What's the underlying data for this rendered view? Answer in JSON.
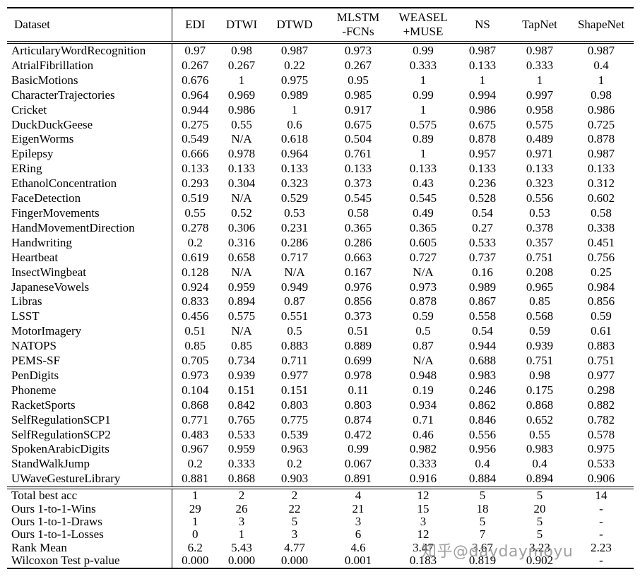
{
  "watermark": "知乎@daydaymoyu",
  "table": {
    "header": [
      {
        "name": "dataset",
        "lines": [
          "Dataset"
        ]
      },
      {
        "name": "edi",
        "lines": [
          "EDI"
        ]
      },
      {
        "name": "dtwi",
        "lines": [
          "DTWI"
        ]
      },
      {
        "name": "dtwd",
        "lines": [
          "DTWD"
        ]
      },
      {
        "name": "mlstm-fcns",
        "lines": [
          "MLSTM",
          "-FCNs"
        ]
      },
      {
        "name": "weasel-muse",
        "lines": [
          "WEASEL",
          "+MUSE"
        ]
      },
      {
        "name": "ns",
        "lines": [
          "NS"
        ]
      },
      {
        "name": "tapnet",
        "lines": [
          "TapNet"
        ]
      },
      {
        "name": "shapenet",
        "lines": [
          "ShapeNet"
        ]
      }
    ],
    "rows": [
      [
        "ArticularyWordRecognition",
        "0.97",
        "0.98",
        "0.987",
        "0.973",
        "0.99",
        "0.987",
        "0.987",
        "0.987"
      ],
      [
        "AtrialFibrillation",
        "0.267",
        "0.267",
        "0.22",
        "0.267",
        "0.333",
        "0.133",
        "0.333",
        "0.4"
      ],
      [
        "BasicMotions",
        "0.676",
        "1",
        "0.975",
        "0.95",
        "1",
        "1",
        "1",
        "1"
      ],
      [
        "CharacterTrajectories",
        "0.964",
        "0.969",
        "0.989",
        "0.985",
        "0.99",
        "0.994",
        "0.997",
        "0.98"
      ],
      [
        "Cricket",
        "0.944",
        "0.986",
        "1",
        "0.917",
        "1",
        "0.986",
        "0.958",
        "0.986"
      ],
      [
        "DuckDuckGeese",
        "0.275",
        "0.55",
        "0.6",
        "0.675",
        "0.575",
        "0.675",
        "0.575",
        "0.725"
      ],
      [
        "EigenWorms",
        "0.549",
        "N/A",
        "0.618",
        "0.504",
        "0.89",
        "0.878",
        "0.489",
        "0.878"
      ],
      [
        "Epilepsy",
        "0.666",
        "0.978",
        "0.964",
        "0.761",
        "1",
        "0.957",
        "0.971",
        "0.987"
      ],
      [
        "ERing",
        "0.133",
        "0.133",
        "0.133",
        "0.133",
        "0.133",
        "0.133",
        "0.133",
        "0.133"
      ],
      [
        "EthanolConcentration",
        "0.293",
        "0.304",
        "0.323",
        "0.373",
        "0.43",
        "0.236",
        "0.323",
        "0.312"
      ],
      [
        "FaceDetection",
        "0.519",
        "N/A",
        "0.529",
        "0.545",
        "0.545",
        "0.528",
        "0.556",
        "0.602"
      ],
      [
        "FingerMovements",
        "0.55",
        "0.52",
        "0.53",
        "0.58",
        "0.49",
        "0.54",
        "0.53",
        "0.58"
      ],
      [
        "HandMovementDirection",
        "0.278",
        "0.306",
        "0.231",
        "0.365",
        "0.365",
        "0.27",
        "0.378",
        "0.338"
      ],
      [
        "Handwriting",
        "0.2",
        "0.316",
        "0.286",
        "0.286",
        "0.605",
        "0.533",
        "0.357",
        "0.451"
      ],
      [
        "Heartbeat",
        "0.619",
        "0.658",
        "0.717",
        "0.663",
        "0.727",
        "0.737",
        "0.751",
        "0.756"
      ],
      [
        "InsectWingbeat",
        "0.128",
        "N/A",
        "N/A",
        "0.167",
        "N/A",
        "0.16",
        "0.208",
        "0.25"
      ],
      [
        "JapaneseVowels",
        "0.924",
        "0.959",
        "0.949",
        "0.976",
        "0.973",
        "0.989",
        "0.965",
        "0.984"
      ],
      [
        "Libras",
        "0.833",
        "0.894",
        "0.87",
        "0.856",
        "0.878",
        "0.867",
        "0.85",
        "0.856"
      ],
      [
        "LSST",
        "0.456",
        "0.575",
        "0.551",
        "0.373",
        "0.59",
        "0.558",
        "0.568",
        "0.59"
      ],
      [
        "MotorImagery",
        "0.51",
        "N/A",
        "0.5",
        "0.51",
        "0.5",
        "0.54",
        "0.59",
        "0.61"
      ],
      [
        "NATOPS",
        "0.85",
        "0.85",
        "0.883",
        "0.889",
        "0.87",
        "0.944",
        "0.939",
        "0.883"
      ],
      [
        "PEMS-SF",
        "0.705",
        "0.734",
        "0.711",
        "0.699",
        "N/A",
        "0.688",
        "0.751",
        "0.751"
      ],
      [
        "PenDigits",
        "0.973",
        "0.939",
        "0.977",
        "0.978",
        "0.948",
        "0.983",
        "0.98",
        "0.977"
      ],
      [
        "Phoneme",
        "0.104",
        "0.151",
        "0.151",
        "0.11",
        "0.19",
        "0.246",
        "0.175",
        "0.298"
      ],
      [
        "RacketSports",
        "0.868",
        "0.842",
        "0.803",
        "0.803",
        "0.934",
        "0.862",
        "0.868",
        "0.882"
      ],
      [
        "SelfRegulationSCP1",
        "0.771",
        "0.765",
        "0.775",
        "0.874",
        "0.71",
        "0.846",
        "0.652",
        "0.782"
      ],
      [
        "SelfRegulationSCP2",
        "0.483",
        "0.533",
        "0.539",
        "0.472",
        "0.46",
        "0.556",
        "0.55",
        "0.578"
      ],
      [
        "SpokenArabicDigits",
        "0.967",
        "0.959",
        "0.963",
        "0.99",
        "0.982",
        "0.956",
        "0.983",
        "0.975"
      ],
      [
        "StandWalkJump",
        "0.2",
        "0.333",
        "0.2",
        "0.067",
        "0.333",
        "0.4",
        "0.4",
        "0.533"
      ],
      [
        "UWaveGestureLibrary",
        "0.881",
        "0.868",
        "0.903",
        "0.891",
        "0.916",
        "0.884",
        "0.894",
        "0.906"
      ]
    ],
    "summary_rows": [
      [
        "Total best acc",
        "1",
        "2",
        "2",
        "4",
        "12",
        "5",
        "5",
        "14"
      ],
      [
        "Ours 1-to-1-Wins",
        "29",
        "26",
        "22",
        "21",
        "15",
        "18",
        "20",
        "-"
      ],
      [
        "Ours 1-to-1-Draws",
        "1",
        "3",
        "5",
        "3",
        "3",
        "5",
        "5",
        "-"
      ],
      [
        "Ours 1-to-1-Losses",
        "0",
        "1",
        "3",
        "6",
        "12",
        "7",
        "5",
        "-"
      ],
      [
        "Rank Mean",
        "6.2",
        "5.43",
        "4.77",
        "4.6",
        "3.47",
        "3.67",
        "3.23",
        "2.23"
      ],
      [
        "Wilcoxon Test p-value",
        "0.000",
        "0.000",
        "0.000",
        "0.001",
        "0.183",
        "0.819",
        "0.902",
        "-"
      ]
    ]
  }
}
